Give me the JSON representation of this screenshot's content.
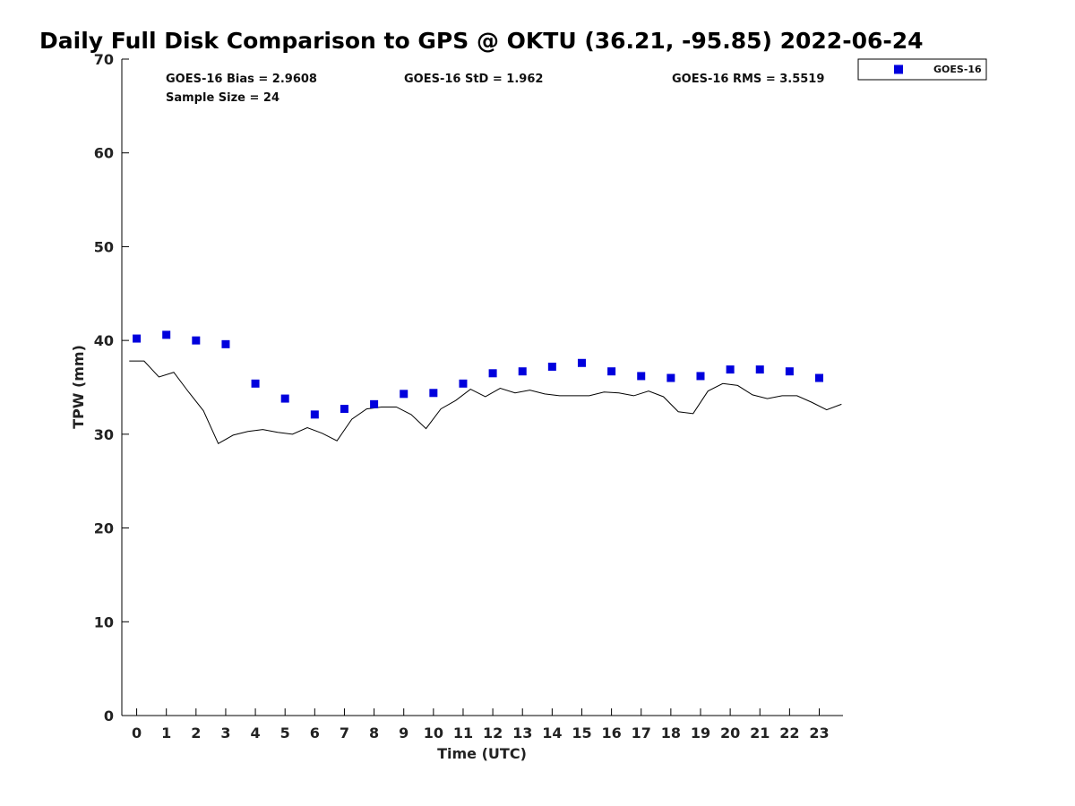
{
  "chart_data": {
    "type": "scatter",
    "title": "Daily Full Disk Comparison to GPS @ OKTU (36.21, -95.85) 2022-06-24",
    "xlabel": "Time (UTC)",
    "ylabel": "TPW (mm)",
    "xlim": [
      -0.5,
      23.8
    ],
    "ylim": [
      0,
      70
    ],
    "x_ticks": [
      "0",
      "1",
      "2",
      "3",
      "4",
      "5",
      "6",
      "7",
      "8",
      "9",
      "10",
      "11",
      "12",
      "13",
      "14",
      "15",
      "16",
      "17",
      "18",
      "19",
      "20",
      "21",
      "22",
      "23"
    ],
    "y_ticks": [
      "0",
      "10",
      "20",
      "30",
      "40",
      "50",
      "60",
      "70"
    ],
    "grid": false,
    "legend": {
      "position": "top-right",
      "entries": [
        "GOES-16"
      ]
    },
    "stats": {
      "bias": "GOES-16 Bias = 2.9608",
      "std": "GOES-16 StD = 1.962",
      "rms": "GOES-16 RMS = 3.5519",
      "sample": "Sample Size = 24"
    },
    "series": [
      {
        "name": "GOES-16",
        "kind": "scatter",
        "marker": "square",
        "color": "#0000dd",
        "x": [
          0,
          1,
          2,
          3,
          4,
          5,
          6,
          7,
          8,
          9,
          10,
          11,
          12,
          13,
          14,
          15,
          16,
          17,
          18,
          19,
          20,
          21,
          22,
          23
        ],
        "y": [
          40.2,
          40.6,
          40.0,
          39.6,
          35.4,
          33.8,
          32.1,
          32.7,
          33.2,
          34.3,
          34.4,
          35.4,
          36.5,
          36.7,
          37.2,
          37.6,
          36.7,
          36.2,
          36.0,
          36.2,
          36.9,
          36.9,
          36.7,
          36.0
        ]
      },
      {
        "kind": "line",
        "color": "#000000",
        "x": [
          -0.25,
          0.25,
          0.75,
          1.25,
          1.75,
          2.25,
          2.75,
          3.25,
          3.75,
          4.25,
          4.75,
          5.25,
          5.75,
          6.25,
          6.75,
          7.25,
          7.75,
          8.25,
          8.75,
          9.25,
          9.75,
          10.25,
          10.75,
          11.25,
          11.75,
          12.25,
          12.75,
          13.25,
          13.75,
          14.25,
          14.75,
          15.25,
          15.75,
          16.25,
          16.75,
          17.25,
          17.75,
          18.25,
          18.75,
          19.25,
          19.75,
          20.25,
          20.75,
          21.25,
          21.75,
          22.25,
          22.75,
          23.25,
          23.75
        ],
        "y": [
          37.8,
          37.8,
          36.1,
          36.6,
          34.5,
          32.5,
          29.0,
          29.9,
          30.3,
          30.5,
          30.2,
          30.0,
          30.7,
          30.1,
          29.3,
          31.6,
          32.7,
          32.9,
          32.9,
          32.1,
          30.6,
          32.7,
          33.6,
          34.8,
          34.0,
          34.9,
          34.4,
          34.7,
          34.3,
          34.1,
          34.1,
          34.1,
          34.5,
          34.4,
          34.1,
          34.6,
          34.0,
          32.4,
          32.2,
          34.6,
          35.4,
          35.2,
          34.2,
          33.8,
          34.1,
          34.1,
          33.4,
          32.6,
          33.2
        ]
      }
    ]
  }
}
